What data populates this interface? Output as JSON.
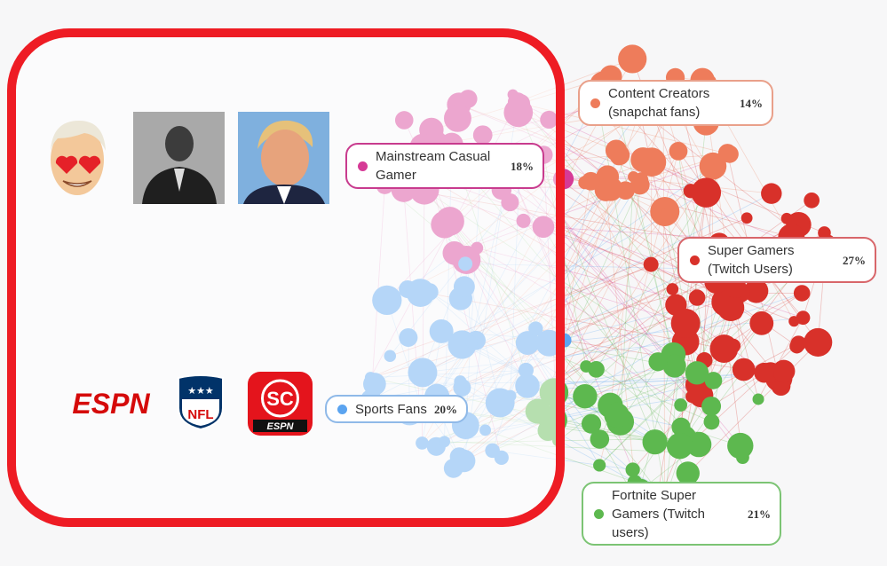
{
  "segments": [
    {
      "id": "content",
      "name": "Content Creators (snapchat fans)",
      "pct": "14%",
      "color": "#ee7c5b",
      "border": "#e9a08a"
    },
    {
      "id": "casual",
      "name": "Mainstream Casual Gamer",
      "pct": "18%",
      "color": "#d63a96",
      "border": "#c83b8e"
    },
    {
      "id": "super",
      "name": "Super Gamers (Twitch Users)",
      "pct": "27%",
      "color": "#d8312a",
      "border": "#d8666a"
    },
    {
      "id": "sports",
      "name": "Sports Fans",
      "pct": "20%",
      "color": "#5ba4f0",
      "border": "#8fb9e8"
    },
    {
      "id": "fortnite",
      "name": "Fortnite Super Gamers (Twitch users)",
      "pct": "21%",
      "color": "#5db84f",
      "border": "#7cc474"
    }
  ],
  "logos": {
    "espn": "ESPN",
    "nfl": "NFL",
    "sc": "SC",
    "sc_sub": "ESPN"
  },
  "icons": {
    "emoji": "heart-eyes-emoji-icon",
    "person1": "person-portrait-icon",
    "person2": "person-portrait-icon"
  },
  "colors": {
    "highlight": "#ee1c24",
    "espn": "#d50a0a",
    "nfl_blue": "#013369",
    "sc_red": "#e4141c"
  }
}
